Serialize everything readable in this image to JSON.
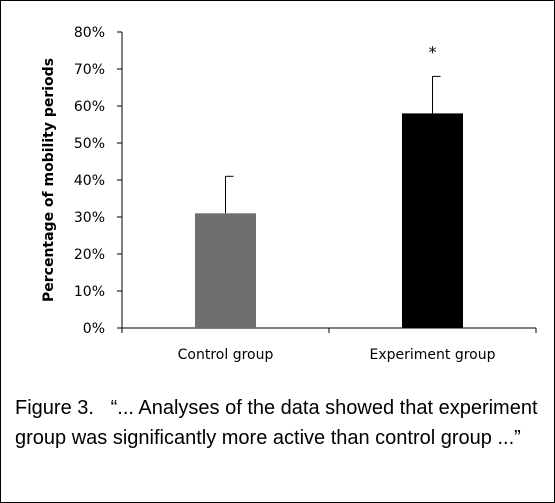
{
  "chart_data": {
    "type": "bar",
    "categories": [
      "Control group",
      "Experiment group"
    ],
    "values": [
      31,
      58
    ],
    "error_upper": [
      41,
      68
    ],
    "ylabel": "Percentage of mobility periods",
    "ylim": [
      0,
      80
    ],
    "y_ticks": [
      "0%",
      "10%",
      "20%",
      "30%",
      "40%",
      "50%",
      "60%",
      "70%",
      "80%"
    ],
    "bar_colors": [
      "#6e6e6e",
      "#000000"
    ],
    "significance_marks": [
      "",
      "*"
    ],
    "grid": false,
    "legend": "none"
  },
  "caption": "Figure 3.   “... Analyses of the data showed that experiment group was significantly more active than control group ...”"
}
